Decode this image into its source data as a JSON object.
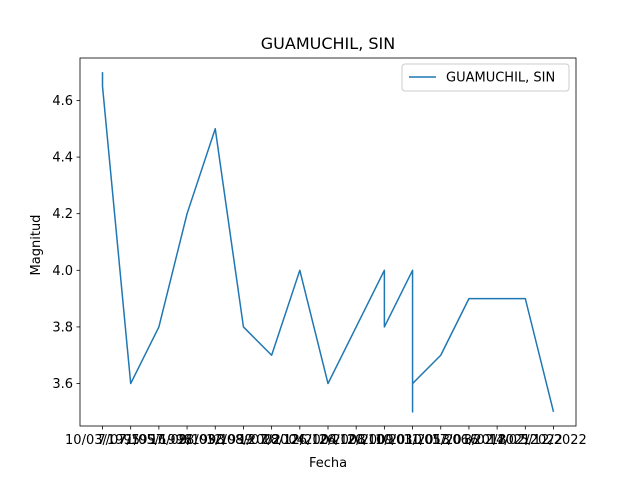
{
  "chart_data": {
    "type": "line",
    "title": "GUAMUCHIL, SIN",
    "xlabel": "Fecha",
    "ylabel": "Magnitud",
    "ylim": [
      3.45,
      4.75
    ],
    "yticks": [
      3.6,
      3.8,
      4.0,
      4.2,
      4.4,
      4.6
    ],
    "grid": false,
    "legend_position": "top-right",
    "categories": [
      "10/03/1995",
      "7/07/1997",
      "1/05/1998",
      "16/09/1998",
      "28/03/1999",
      "12/08/2002",
      "1/07/2004",
      "28/12/2004",
      "26/12/2008",
      "26/12/2009",
      "20/10/2010",
      "10/03/2013",
      "11/05/2016",
      "17/06/2018",
      "3/02/2021",
      "14/02/2022",
      "5/12/2022"
    ],
    "series": [
      {
        "name": "GUAMUCHIL, SIN",
        "color": "#1f77b4",
        "points": [
          {
            "x": 0,
            "y": 4.7
          },
          {
            "x": 0,
            "y": 4.65
          },
          {
            "x": 1,
            "y": 3.6
          },
          {
            "x": 2,
            "y": 3.8
          },
          {
            "x": 3,
            "y": 4.2
          },
          {
            "x": 4,
            "y": 4.5
          },
          {
            "x": 5,
            "y": 3.8
          },
          {
            "x": 6,
            "y": 3.7
          },
          {
            "x": 7,
            "y": 4.0
          },
          {
            "x": 8,
            "y": 3.6
          },
          {
            "x": 10,
            "y": 4.0
          },
          {
            "x": 10,
            "y": 3.8
          },
          {
            "x": 11,
            "y": 4.0
          },
          {
            "x": 11,
            "y": 3.5
          },
          {
            "x": 11,
            "y": 3.6
          },
          {
            "x": 12,
            "y": 3.7
          },
          {
            "x": 13,
            "y": 3.9
          },
          {
            "x": 15,
            "y": 3.9
          },
          {
            "x": 16,
            "y": 3.5
          }
        ]
      }
    ]
  }
}
